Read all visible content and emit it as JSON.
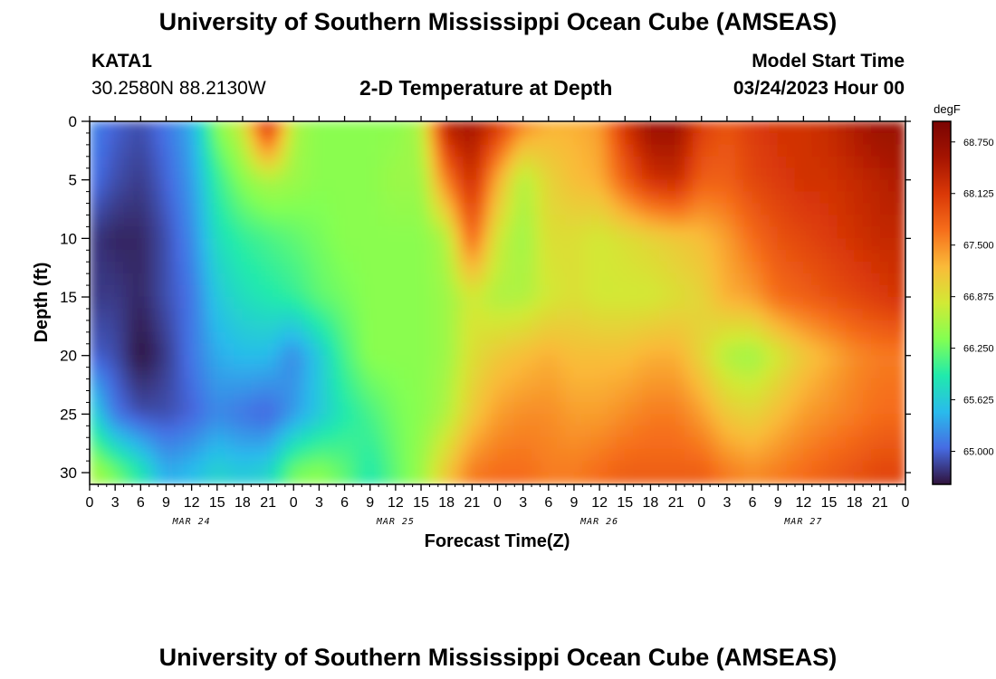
{
  "page": {
    "title": "University of Southern Mississippi Ocean Cube (AMSEAS)",
    "station": "KATA1",
    "location": "30.2580N  88.2130W",
    "plot_title": "2-D Temperature at Depth",
    "model_start_label": "Model Start Time",
    "model_start_value": "03/24/2023 Hour 00",
    "footer_title": "University of Southern Mississippi Ocean Cube (AMSEAS)"
  },
  "chart_data": {
    "type": "heatmap",
    "title": "2-D Temperature at Depth",
    "xlabel": "Forecast Time(Z)",
    "ylabel": "Depth (ft)",
    "x_ticks": [
      "0",
      "3",
      "6",
      "9",
      "12",
      "15",
      "18",
      "21",
      "0",
      "3",
      "6",
      "9",
      "12",
      "15",
      "18",
      "21",
      "0",
      "3",
      "6",
      "9",
      "12",
      "15",
      "18",
      "21",
      "0",
      "3",
      "6",
      "9",
      "12",
      "15",
      "18",
      "21",
      "0"
    ],
    "date_labels": [
      "MAR 24",
      "MAR 25",
      "MAR 26",
      "MAR 27"
    ],
    "y_ticks": [
      "0",
      "5",
      "10",
      "15",
      "20",
      "25",
      "30"
    ],
    "ylim": [
      0,
      31
    ],
    "colorbar": {
      "unit": "degF",
      "min": 64.6,
      "max": 69.0,
      "ticks": [
        "68.750",
        "68.125",
        "67.500",
        "66.875",
        "66.250",
        "65.625",
        "65.000"
      ]
    },
    "colors": {
      "low": "#30123b",
      "mid": "#a4fc3c",
      "high": "#7a0403"
    },
    "depths_ft": [
      0,
      5,
      10,
      15,
      20,
      25,
      30
    ],
    "times_hr": [
      0,
      3,
      6,
      9,
      12,
      15,
      18,
      21,
      24,
      27,
      30,
      33,
      36,
      39,
      42,
      45,
      48,
      51,
      54,
      57,
      60,
      63,
      66,
      69,
      72,
      75,
      78,
      81,
      84,
      87,
      90,
      93,
      96
    ],
    "temperature_degF": [
      [
        65.2,
        65.0,
        64.9,
        65.1,
        65.4,
        66.4,
        66.8,
        68.4,
        66.6,
        66.4,
        66.4,
        66.4,
        66.4,
        66.6,
        68.5,
        68.6,
        68.2,
        67.6,
        67.3,
        67.3,
        67.4,
        68.2,
        68.7,
        68.7,
        68.1,
        67.9,
        68.1,
        68.2,
        68.2,
        68.3,
        68.5,
        68.7,
        68.7
      ],
      [
        65.1,
        64.9,
        64.8,
        65.0,
        65.3,
        66.0,
        66.4,
        66.6,
        66.5,
        66.4,
        66.4,
        66.4,
        66.5,
        66.5,
        67.6,
        68.3,
        67.3,
        66.6,
        67.0,
        67.2,
        67.3,
        67.8,
        68.2,
        68.3,
        67.8,
        67.8,
        68.0,
        68.1,
        68.2,
        68.2,
        68.3,
        68.4,
        68.5
      ],
      [
        64.8,
        64.7,
        64.7,
        64.9,
        65.2,
        65.8,
        66.0,
        66.1,
        66.2,
        66.3,
        66.4,
        66.4,
        66.4,
        66.4,
        66.6,
        67.8,
        66.8,
        66.5,
        66.9,
        66.9,
        66.8,
        66.9,
        67.0,
        67.1,
        67.2,
        67.4,
        67.7,
        67.9,
        68.0,
        68.1,
        68.2,
        68.3,
        68.3
      ],
      [
        64.8,
        64.8,
        64.7,
        64.9,
        65.1,
        65.6,
        65.8,
        65.9,
        66.0,
        66.2,
        66.3,
        66.4,
        66.4,
        66.4,
        66.5,
        66.8,
        66.6,
        66.6,
        66.8,
        66.9,
        66.8,
        66.8,
        66.8,
        66.9,
        67.0,
        67.3,
        67.4,
        67.7,
        67.8,
        67.9,
        68.0,
        68.1,
        68.2
      ],
      [
        65.0,
        64.9,
        64.6,
        64.8,
        65.1,
        65.4,
        65.5,
        65.5,
        65.2,
        65.6,
        66.1,
        66.4,
        66.4,
        66.4,
        66.5,
        66.9,
        67.1,
        67.2,
        67.3,
        67.2,
        67.2,
        67.2,
        67.3,
        67.3,
        67.0,
        66.6,
        66.5,
        66.8,
        67.1,
        67.3,
        67.5,
        67.6,
        67.6
      ],
      [
        65.8,
        65.1,
        64.9,
        64.9,
        65.0,
        65.2,
        65.1,
        65.0,
        65.3,
        65.6,
        65.9,
        66.1,
        66.3,
        66.4,
        66.6,
        67.1,
        67.4,
        67.5,
        67.5,
        67.4,
        67.4,
        67.5,
        67.6,
        67.6,
        67.4,
        67.1,
        67.0,
        67.2,
        67.4,
        67.5,
        67.6,
        67.7,
        67.7
      ],
      [
        66.6,
        66.3,
        65.9,
        65.4,
        65.5,
        65.7,
        65.6,
        65.7,
        66.3,
        66.4,
        66.2,
        65.9,
        66.2,
        66.5,
        67.1,
        67.6,
        67.7,
        67.7,
        67.6,
        67.6,
        67.7,
        67.8,
        67.8,
        67.8,
        67.8,
        67.6,
        67.5,
        67.6,
        67.7,
        67.8,
        67.9,
        68.0,
        68.0
      ]
    ]
  }
}
